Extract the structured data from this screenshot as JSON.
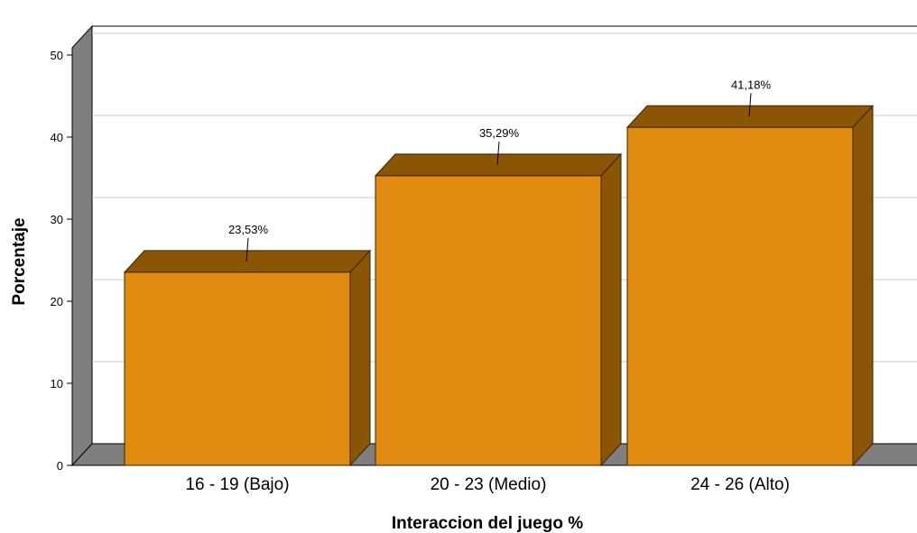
{
  "chart_data": {
    "type": "bar",
    "categories": [
      "16 - 19 (Bajo)",
      "20 - 23 (Medio)",
      "24 - 26 (Alto)"
    ],
    "values": [
      23.53,
      35.29,
      41.18
    ],
    "data_labels": [
      "23,53%",
      "35,29%",
      "41,18%"
    ],
    "xlabel": "Interaccion del juego %",
    "ylabel": "Porcentaje",
    "ylim": [
      0,
      50
    ],
    "yticks": [
      "0",
      "10",
      "20",
      "30",
      "40",
      "50"
    ],
    "grid": true,
    "style": "3d",
    "colors": {
      "bar_front": "#E08A10",
      "bar_top": "#8B5506",
      "bar_side": "#8B5506",
      "wall": "#7F7F7F",
      "gridline": "#C8C8C8"
    }
  }
}
